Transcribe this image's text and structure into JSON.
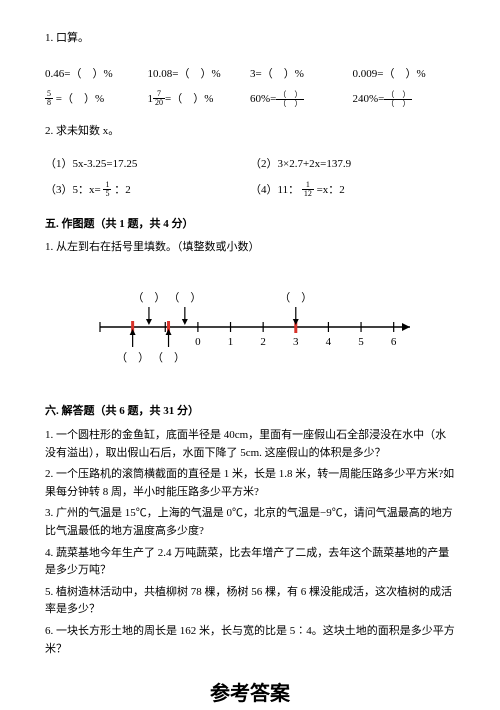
{
  "q1": {
    "title": "1. 口算。",
    "rows": [
      [
        "0.46=（　）%",
        "10.08=（　）%",
        "3=（　）%",
        "0.009=（　）%"
      ],
      [
        "FRAC",
        "MIXED",
        "60%=PAREN",
        "240%=PAREN"
      ]
    ],
    "frac1": {
      "n": "5",
      "d": "8",
      "tail": " =（　）%"
    },
    "mixed1": {
      "whole": "1",
      "n": "7",
      "d": "20",
      "tail": "=（　）%"
    }
  },
  "q2": {
    "title": "2. 求未知数 x。",
    "items": [
      "（1）5x-3.25=17.25",
      "（2）3×2.7+2x=137.9",
      "（3）5：x= FRAC15 ：2",
      "（4）11： FRAC112 =x：2"
    ],
    "frac15": {
      "n": "1",
      "d": "5"
    },
    "frac112": {
      "n": "1",
      "d": "12"
    }
  },
  "sec5": {
    "heading": "五. 作图题（共 1 题，共 4 分）",
    "q": "1. 从左到右在括号里填数。（填整数或小数）"
  },
  "numberline": {
    "ticks": [
      0,
      1,
      2,
      3,
      4,
      5,
      6
    ],
    "top_paren_x": [
      -1.5,
      -0.4,
      3
    ],
    "bot_paren_x": [
      -2.0,
      -0.9
    ],
    "red_x": [
      -2.0,
      -0.9,
      3
    ],
    "colors": {
      "axis": "#000000",
      "red": "#d8322a",
      "text": "#000000"
    }
  },
  "sec6": {
    "heading": "六. 解答题（共 6 题，共 31 分）",
    "items": [
      "1. 一个圆柱形的金鱼缸，底面半径是 40cm，里面有一座假山石全部浸没在水中（水没有溢出），取出假山石后，水面下降了 5cm. 这座假山的体积是多少？",
      "2. 一个压路机的滚筒横截面的直径是 1 米，长是 1.8 米，转一周能压路多少平方米?如果每分钟转 8 周，半小时能压路多少平方米?",
      "3. 广州的气温是 15℃，上海的气温是 0℃，北京的气温是−9℃，请问气温最高的地方比气温最低的地方温度高多少度?",
      "4. 蔬菜基地今年生产了 2.4 万吨蔬菜，比去年增产了二成，去年这个蔬菜基地的产量是多少万吨？",
      "5. 植树造林活动中，共植柳树 78 棵，杨树 56 棵，有 6 棵没能成活，这次植树的成活率是多少？",
      "6. 一块长方形土地的周长是 162 米，长与宽的比是 5∶4。这块土地的面积是多少平方米？"
    ]
  },
  "answer_heading": "参考答案"
}
